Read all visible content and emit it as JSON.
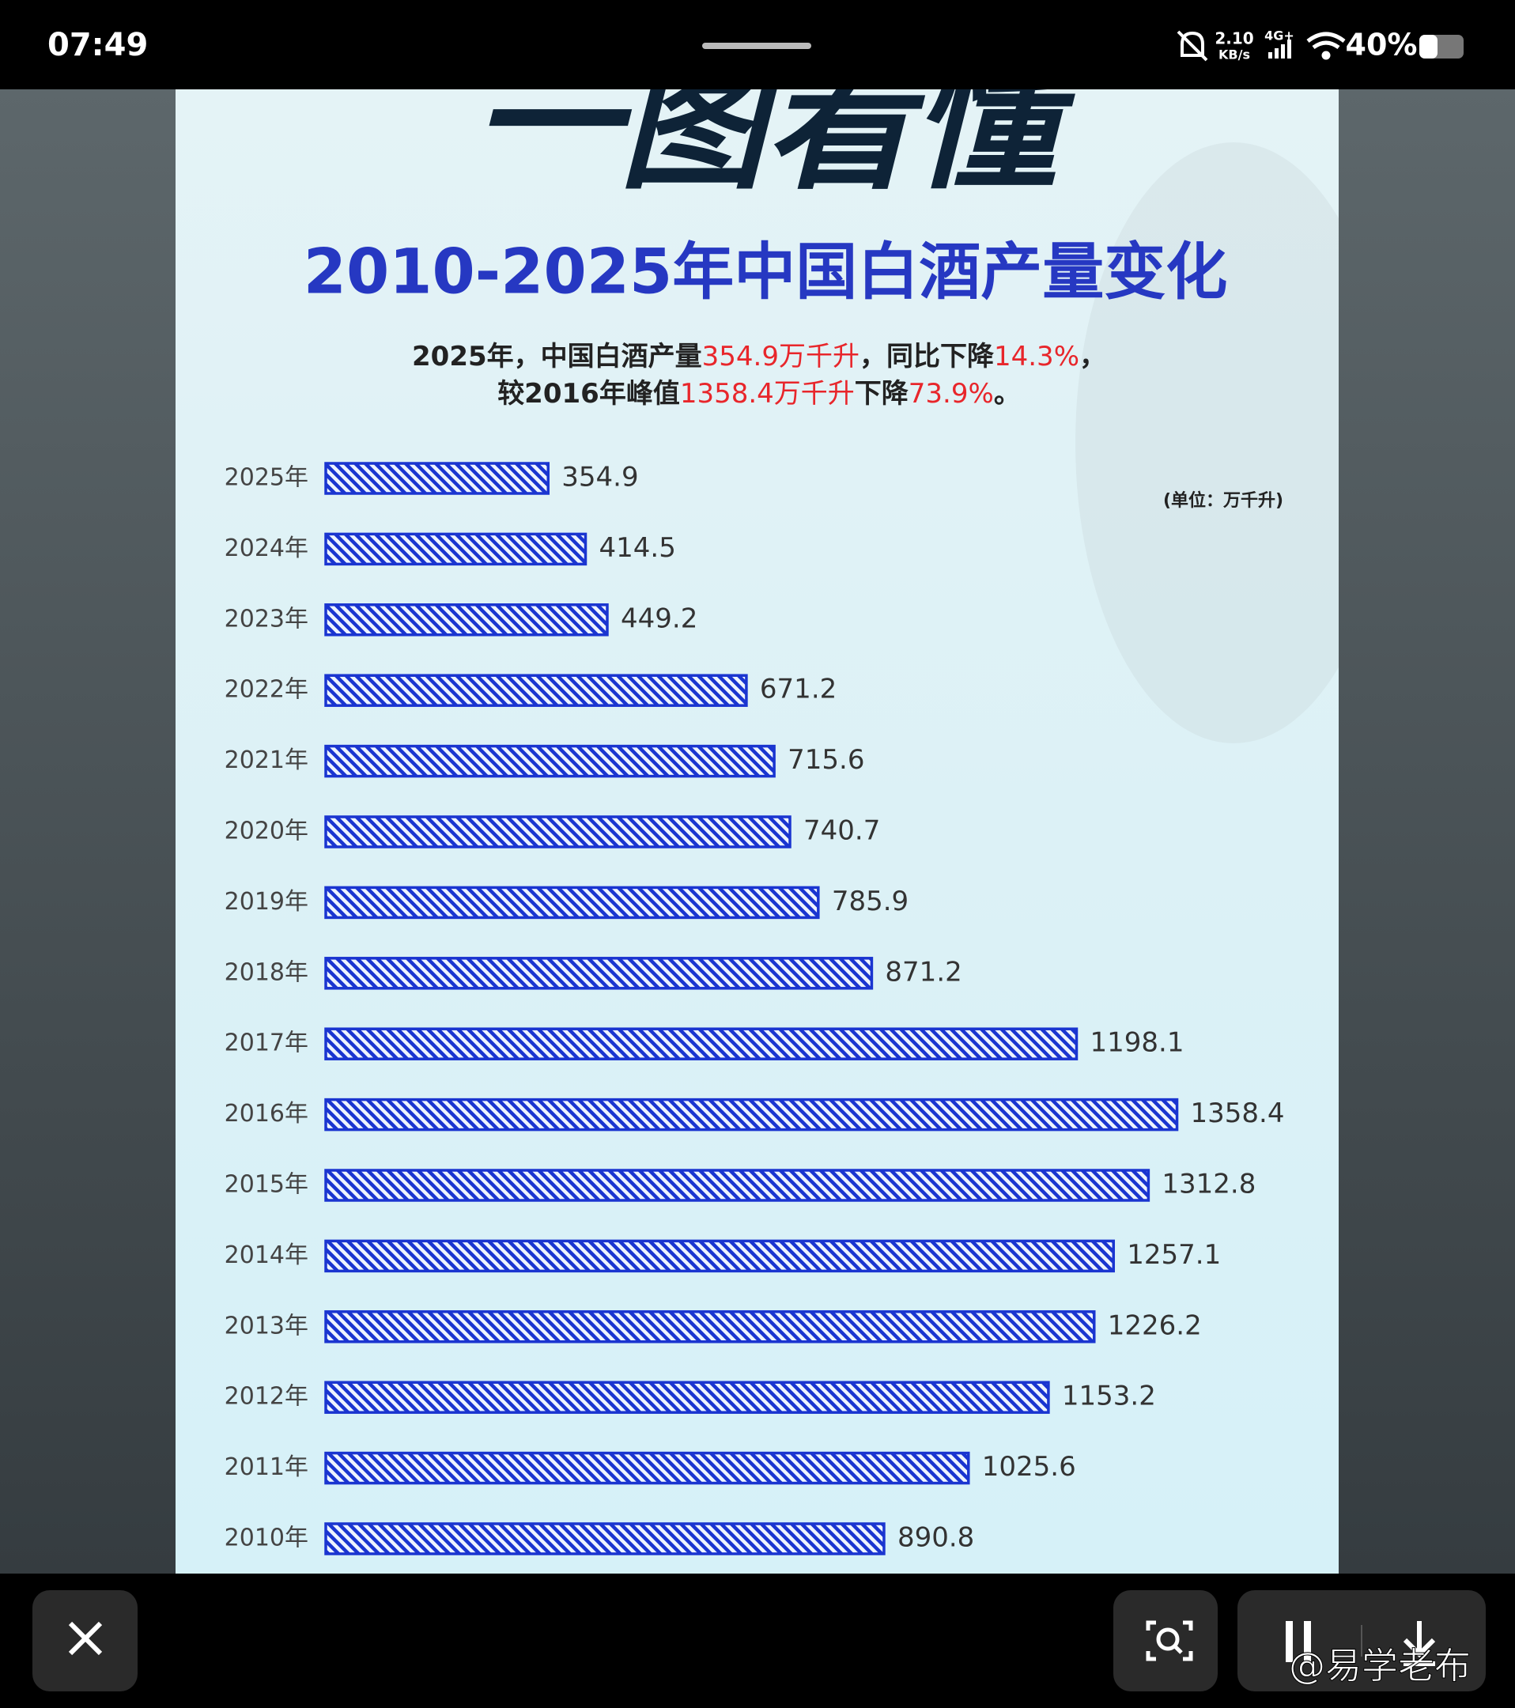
{
  "status_bar": {
    "time": "07:49",
    "net_speed": "2.10",
    "net_unit": "KB/s",
    "network": "4G+",
    "battery": "40%"
  },
  "chart_data": {
    "type": "bar",
    "orientation": "horizontal",
    "header": "一图看懂",
    "title": "2010-2025年中国白酒产量变化",
    "subtitle": [
      [
        "2025年，中国白酒产量",
        "354.9万千升",
        "，同比下降",
        "14.3%",
        "，"
      ],
      [
        "较2016年峰值",
        "1358.4万千升",
        "下降",
        "73.9%",
        "。"
      ]
    ],
    "highlight_color": "#e8262b",
    "unit": "(单位：万千升)",
    "categories": [
      "2025年",
      "2024年",
      "2023年",
      "2022年",
      "2021年",
      "2020年",
      "2019年",
      "2018年",
      "2017年",
      "2016年",
      "2015年",
      "2014年",
      "2013年",
      "2012年",
      "2011年",
      "2010年"
    ],
    "values": [
      354.9,
      414.5,
      449.2,
      671.2,
      715.6,
      740.7,
      785.9,
      871.2,
      1198.1,
      1358.4,
      1312.8,
      1257.1,
      1226.2,
      1153.2,
      1025.6,
      890.8
    ],
    "color": "#1a35d0"
  },
  "watermark": "@易学老布"
}
